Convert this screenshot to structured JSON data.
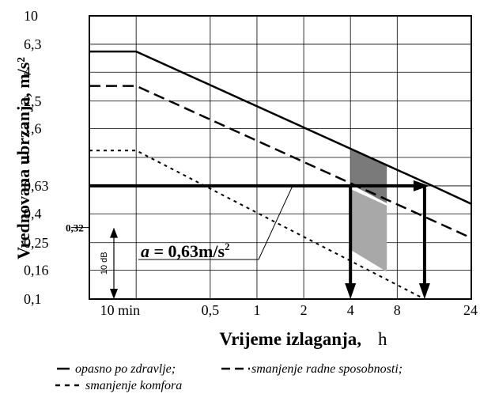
{
  "chart_data": {
    "type": "line",
    "ylabel": "Vrednovana ubrzanja, m/s²",
    "xlabel": "Vrijeme izlaganja,",
    "xunit": "h",
    "x_scale": "log",
    "y_scale": "log",
    "xlim": [
      0.0833,
      24
    ],
    "ylim": [
      0.1,
      10
    ],
    "x_ticks": [
      {
        "value": 0.1667,
        "label": "10 min"
      },
      {
        "value": 0.5,
        "label": "0,5"
      },
      {
        "value": 1,
        "label": "1"
      },
      {
        "value": 2,
        "label": "2"
      },
      {
        "value": 4,
        "label": "4"
      },
      {
        "value": 8,
        "label": "8"
      },
      {
        "value": 24,
        "label": "24"
      }
    ],
    "y_ticks": [
      {
        "value": 0.1,
        "label": "0,1"
      },
      {
        "value": 0.16,
        "label": "0,16"
      },
      {
        "value": 0.25,
        "label": "0,25"
      },
      {
        "value": 0.4,
        "label": "0,4"
      },
      {
        "value": 0.63,
        "label": "0,63"
      },
      {
        "value": 1,
        "label": "1"
      },
      {
        "value": 1.6,
        "label": "1,6"
      },
      {
        "value": 2.5,
        "label": "2,5"
      },
      {
        "value": 4,
        "label": "4"
      },
      {
        "value": 6.3,
        "label": "6,3"
      },
      {
        "value": 10,
        "label": "10"
      }
    ],
    "grid": true,
    "series": [
      {
        "name": "opasno po zdravlje;",
        "style": "solid",
        "points": [
          [
            0.0833,
            5.6
          ],
          [
            0.1667,
            5.6
          ],
          [
            13.5,
            0.63
          ],
          [
            24,
            0.47
          ]
        ]
      },
      {
        "name": "smanjenje radne sposobnosti;",
        "style": "dashed",
        "points": [
          [
            0.0833,
            3.2
          ],
          [
            0.1667,
            3.2
          ],
          [
            24,
            0.27
          ]
        ]
      },
      {
        "name": "smanjenje komfora",
        "style": "dotted",
        "points": [
          [
            0.0833,
            1.12
          ],
          [
            0.1667,
            1.12
          ],
          [
            12,
            0.1
          ]
        ]
      }
    ],
    "annotations": {
      "reference_level": {
        "value": 0.63,
        "label_prefix": "a = ",
        "label_value": "0,63m/s",
        "label_sup": "2"
      },
      "extra_tick_label": "0,32",
      "range_label": "10 dB",
      "down_arrows_x": [
        4,
        12
      ]
    }
  },
  "legend": {
    "solid": "opasno po zdravlje;",
    "dashed": "smanjenje radne sposobnosti;",
    "dotted": "smanjenje komfora"
  },
  "colors": {
    "ink": "#000000",
    "shade_dark": "#7a7a7a",
    "shade_light": "#a8a8a8",
    "grid": "#000000"
  }
}
